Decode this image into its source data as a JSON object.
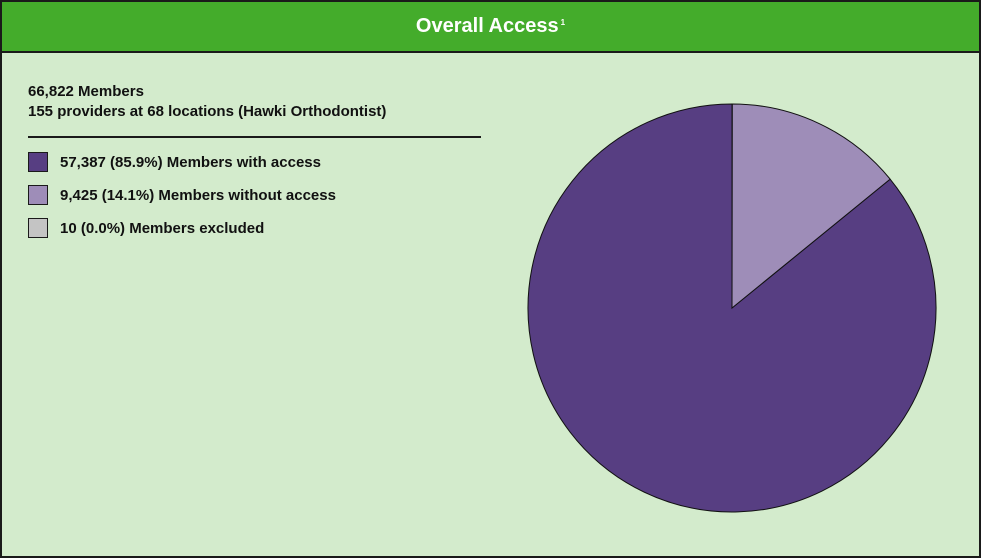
{
  "title": "Overall Access",
  "title_superscript": "1",
  "summary": {
    "members": "66,822 Members",
    "providers": "155 providers at 68 locations (Hawki Orthodontist)"
  },
  "legend": [
    {
      "label": "57,387 (85.9%) Members with access",
      "color": "#573e82"
    },
    {
      "label": "9,425 (14.1%) Members without access",
      "color": "#9e8db8"
    },
    {
      "label": "10 (0.0%) Members excluded",
      "color": "#c4c4c4"
    }
  ],
  "colors": {
    "title_bar": "#44ac2b",
    "panel_background": "#d3ebcc",
    "border": "#1a1a1a"
  },
  "chart_data": {
    "type": "pie",
    "categories": [
      "Members with access",
      "Members without access",
      "Members excluded"
    ],
    "values": [
      57387,
      9425,
      10
    ],
    "percentages": [
      85.9,
      14.1,
      0.0
    ],
    "colors": [
      "#573e82",
      "#9e8db8",
      "#c4c4c4"
    ],
    "start_angle": "12 o'clock",
    "direction": "counterclockwise"
  }
}
